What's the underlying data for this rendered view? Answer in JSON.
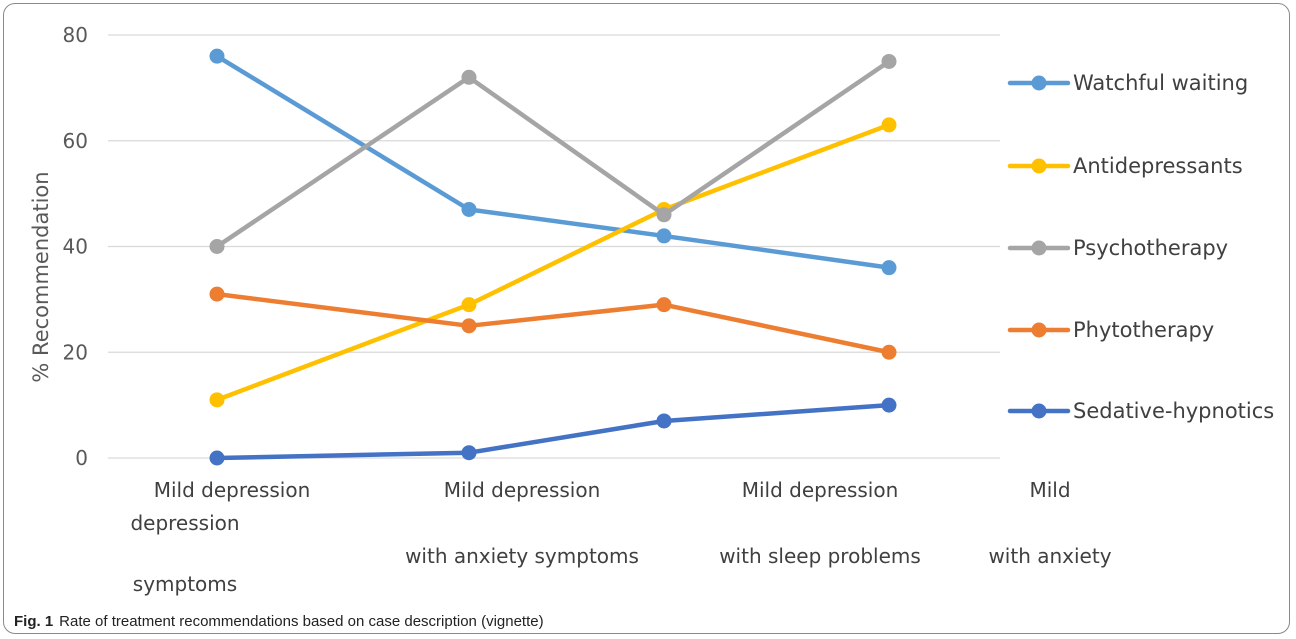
{
  "caption": {
    "label": "Fig. 1",
    "text": "Rate of treatment recommendations based on case description (vignette)"
  },
  "chart_data": {
    "type": "line",
    "title": "",
    "xlabel": "",
    "ylabel": "% Recommendation",
    "ylim": [
      0,
      80
    ],
    "yticks": [
      "0",
      "20",
      "40",
      "60",
      "80"
    ],
    "grid": true,
    "legend_position": "right",
    "category_label_lines": [
      [
        "Mild depression",
        "depression",
        "symptoms"
      ],
      [
        "Mild depression",
        "with anxiety symptoms"
      ],
      [
        "Mild depression",
        "with sleep problems"
      ],
      [
        "Mild",
        "with anxiety"
      ]
    ],
    "categories": [
      "Mild depression depression symptoms",
      "Mild depression with anxiety symptoms",
      "Mild depression with sleep problems",
      "Mild with anxiety"
    ],
    "series": [
      {
        "name": "Watchful waiting",
        "color": "#5B9BD5",
        "values": [
          76,
          47,
          42,
          36
        ]
      },
      {
        "name": "Antidepressants",
        "color": "#FFC000",
        "values": [
          11,
          29,
          47,
          63
        ]
      },
      {
        "name": "Psychotherapy",
        "color": "#A5A5A5",
        "values": [
          40,
          72,
          46,
          75
        ]
      },
      {
        "name": "Phytotherapy",
        "color": "#ED7D31",
        "values": [
          31,
          25,
          29,
          20
        ]
      },
      {
        "name": "Sedative-hypnotics",
        "color": "#4472C4",
        "values": [
          0,
          1,
          7,
          10
        ]
      }
    ]
  }
}
